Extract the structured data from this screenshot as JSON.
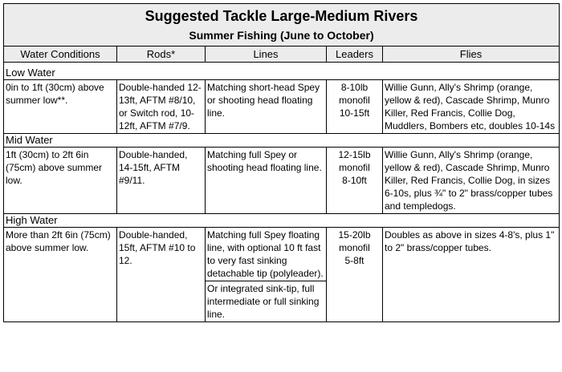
{
  "title": "Suggested Tackle Large-Medium Rivers",
  "subtitle": "Summer Fishing (June to October)",
  "columns": {
    "water": "Water Conditions",
    "rods": "Rods*",
    "lines": "Lines",
    "leaders": "Leaders",
    "flies": "Flies"
  },
  "sections": {
    "low": {
      "label": "Low Water",
      "water": "0in to 1ft (30cm) above summer low**.",
      "rods": "Double-handed 12-13ft, AFTM #8/10, or Switch rod, 10-12ft, AFTM #7/9.",
      "lines": "Matching short-head Spey or shooting head floating line.",
      "leaders_1": "8-10lb",
      "leaders_2": "monofil",
      "leaders_3": "10-15ft",
      "flies": "Willie Gunn, Ally's Shrimp (orange, yellow & red), Cascade Shrimp, Munro Killer, Red Francis, Collie Dog, Muddlers, Bombers etc, doubles 10-14s"
    },
    "mid": {
      "label": "Mid Water",
      "water": "1ft (30cm) to 2ft 6in (75cm) above summer low.",
      "rods": "Double-handed, 14-15ft, AFTM #9/11.",
      "lines": "Matching full Spey or shooting head floating line.",
      "leaders_1": "12-15lb",
      "leaders_2": "monofil",
      "leaders_3": "8-10ft",
      "flies": "Willie Gunn, Ally's Shrimp (orange, yellow & red), Cascade Shrimp, Munro Killer, Red Francis, Collie Dog, in sizes 6-10s, plus ¾\" to 2\" brass/copper tubes and templedogs."
    },
    "high": {
      "label": "High Water",
      "water": "More than 2ft 6in (75cm) above summer low.",
      "rods": "Double-handed, 15ft, AFTM #10 to 12.",
      "lines_a": "Matching full Spey floating line, with optional 10 ft fast to very fast sinking detachable tip (polyleader).",
      "lines_b": "Or integrated sink-tip, full intermediate or full sinking line.",
      "leaders_1": "15-20lb",
      "leaders_2": "monofil",
      "leaders_3": "5-8ft",
      "flies": "Doubles as above in sizes 4-8's, plus 1\" to 2\" brass/copper tubes."
    }
  }
}
